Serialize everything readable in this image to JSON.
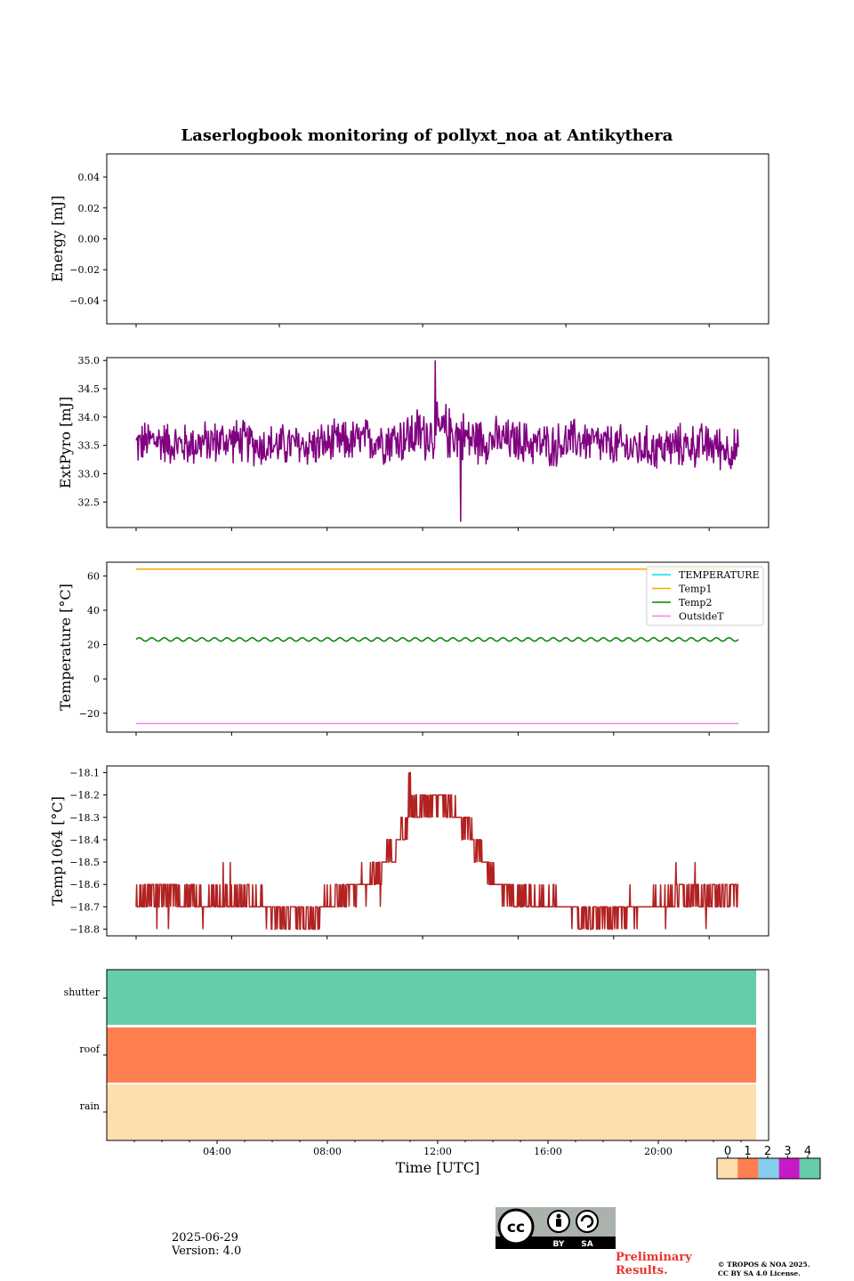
{
  "figure": {
    "title": "Laserlogbook monitoring of pollyxt_noa at Antikythera",
    "xlabel": "Time [UTC]",
    "date": "2025-06-29",
    "version": "Version: 4.0",
    "preliminary": "Preliminary Results.",
    "copyright_line1": "© TROPOS & NOA 2025.",
    "copyright_line2": "CC BY SA 4.0 License.",
    "license_badge": {
      "cc": "cc",
      "by": "BY",
      "sa": "SA"
    }
  },
  "chart_data": [
    {
      "type": "line",
      "panel": "energy",
      "ylabel": "Energy [mJ]",
      "ylim": [
        -0.055,
        0.055
      ],
      "yticks": [
        0.04,
        0.02,
        0.0,
        -0.02,
        -0.04
      ],
      "ytick_labels": [
        "0.04",
        "0.02",
        "0.00",
        "−0.02",
        "−0.04"
      ],
      "series": []
    },
    {
      "type": "line",
      "panel": "extpyro",
      "ylabel": "ExtPyro [mJ]",
      "ylim": [
        32.05,
        35.05
      ],
      "yticks": [
        35.0,
        34.5,
        34.0,
        33.5,
        33.0,
        32.5
      ],
      "ytick_labels": [
        "35.0",
        "34.5",
        "34.0",
        "33.5",
        "33.0",
        "32.5"
      ],
      "x_range_hours": [
        0.8,
        23.5
      ],
      "series": [
        {
          "color": "#800080",
          "x": [
            0.8,
            1.5,
            2.5,
            3.5,
            4.5,
            5.5,
            6.5,
            7.5,
            8.5,
            9.5,
            10.5,
            11.5,
            12.5,
            13.5,
            14.5,
            15.5,
            16.5,
            17.5,
            18.5,
            19.5,
            20.5,
            21.5,
            22.5,
            23.5
          ],
          "y": [
            33.5,
            33.6,
            33.5,
            33.55,
            33.6,
            33.5,
            33.5,
            33.5,
            33.55,
            33.6,
            33.6,
            33.7,
            33.75,
            33.6,
            33.6,
            33.55,
            33.5,
            33.6,
            33.5,
            33.45,
            33.45,
            33.5,
            33.5,
            33.4
          ],
          "fluct": [
            0.35,
            0.35,
            0.35,
            0.35,
            0.35,
            0.35,
            0.35,
            0.35,
            0.35,
            0.35,
            0.4,
            0.45,
            0.45,
            0.4,
            0.35,
            0.35,
            0.35,
            0.35,
            0.35,
            0.35,
            0.35,
            0.35,
            0.35,
            0.35
          ],
          "extremes": {
            "max": 35.0,
            "min": 32.15
          }
        }
      ]
    },
    {
      "type": "line",
      "panel": "temperature",
      "ylabel": "Temperature [°C]",
      "ylim": [
        -31,
        68
      ],
      "yticks": [
        60,
        40,
        20,
        0,
        -20
      ],
      "ytick_labels": [
        "60",
        "40",
        "20",
        "0",
        "−20"
      ],
      "x_range_hours": [
        0.8,
        23.5
      ],
      "legend": "upper right",
      "series": [
        {
          "name": "TEMPERATURE",
          "color": "#00e0e0",
          "values": []
        },
        {
          "name": "Temp1",
          "color": "#ffa500",
          "value": 64
        },
        {
          "name": "Temp2",
          "color": "#008000",
          "value": 23,
          "oscillation_amp": 1.0,
          "cycles": 48
        },
        {
          "name": "OutsideT",
          "color": "#ee82ee",
          "value": -26
        }
      ]
    },
    {
      "type": "line",
      "panel": "temp1064",
      "ylabel": "Temp1064 [°C]",
      "ylim": [
        -18.83,
        -18.07
      ],
      "yticks": [
        -18.1,
        -18.2,
        -18.3,
        -18.4,
        -18.5,
        -18.6,
        -18.7,
        -18.8
      ],
      "ytick_labels": [
        "−18.1",
        "−18.2",
        "−18.3",
        "−18.4",
        "−18.5",
        "−18.6",
        "−18.7",
        "−18.8"
      ],
      "x_range_hours": [
        0.8,
        23.5
      ],
      "series": [
        {
          "color": "#b22222",
          "x": [
            0.8,
            2.0,
            3.5,
            5.0,
            6.0,
            7.0,
            7.5,
            8.0,
            9.0,
            9.5,
            10.0,
            10.5,
            11.0,
            11.5,
            12.0,
            12.5,
            13.0,
            13.5,
            14.0,
            14.5,
            15.0,
            16.0,
            17.0,
            18.0,
            19.0,
            20.0,
            21.0,
            22.0,
            23.5
          ],
          "y": [
            -18.65,
            -18.65,
            -18.68,
            -18.66,
            -18.72,
            -18.75,
            -18.73,
            -18.68,
            -18.62,
            -18.6,
            -18.53,
            -18.45,
            -18.33,
            -18.25,
            -18.22,
            -18.23,
            -18.3,
            -18.4,
            -18.52,
            -18.6,
            -18.66,
            -18.67,
            -18.7,
            -18.74,
            -18.74,
            -18.7,
            -18.66,
            -18.64,
            -18.64
          ],
          "quantum": 0.1,
          "spikes": {
            "high": [
              11.0,
              11.2
            ],
            "high_value": -18.1
          }
        }
      ]
    },
    {
      "type": "heatmap",
      "panel": "status",
      "rows": [
        "shutter",
        "roof",
        "rain"
      ],
      "x_end_hours": 23.55,
      "values": [
        4,
        1,
        0
      ],
      "xticks": [
        4,
        8,
        12,
        16,
        20
      ],
      "xtick_labels": [
        "04:00",
        "08:00",
        "12:00",
        "16:00",
        "20:00"
      ],
      "colorbar": {
        "labels": [
          "0",
          "1",
          "2",
          "3",
          "4"
        ],
        "colors": [
          "#fddfae",
          "#ff7f50",
          "#87ceeb",
          "#c71ac7",
          "#66cdaa"
        ]
      }
    }
  ]
}
